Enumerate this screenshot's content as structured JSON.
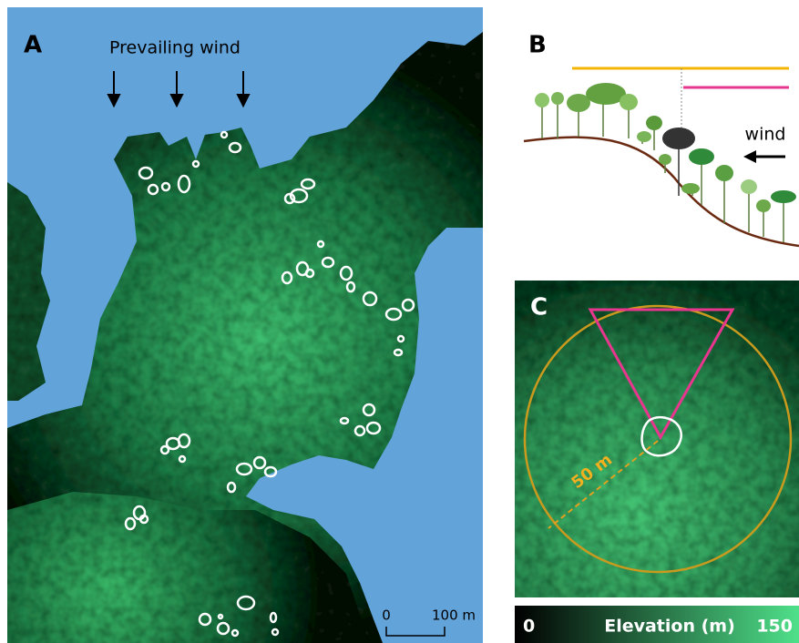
{
  "panels": [
    {
      "label": "A",
      "annotation": "Prevailing wind",
      "scale_bar": {
        "start": "0",
        "end": "100 m"
      }
    },
    {
      "label": "B",
      "annotation": "wind"
    },
    {
      "label": "C",
      "annotation": "50 m"
    }
  ],
  "colorbar": {
    "min": "0",
    "title": "Elevation (m)",
    "max": "150"
  }
}
